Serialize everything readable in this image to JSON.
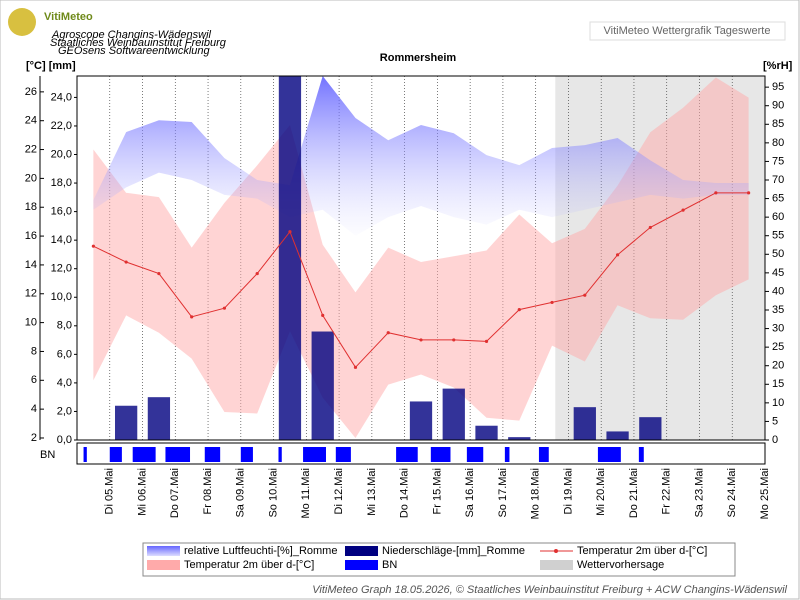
{
  "header": {
    "logo": "VitiMeteo",
    "logo_lines": [
      "Agroscope Changins-Wädenswil",
      "Staatliches Weinbauinstitut Freiburg",
      "GEOsens Softwareentwicklung"
    ],
    "badge": "VitiMeteo Wettergrafik Tageswerte"
  },
  "footer": "VitiMeteo Graph 18.05.2026, © Staatliches Weinbauinstitut Freiburg + ACW Changins-Wädenswil",
  "chart_data": {
    "type": "combo",
    "title": "Rommersheim",
    "y_label": "[°C] [mm]",
    "y2_label": "[%rH]",
    "strip_label": "BN",
    "categories": [
      "Di 05.Mai",
      "Mi 06.Mai",
      "Do 07.Mai",
      "Fr 08.Mai",
      "Sa 09.Mai",
      "So 10.Mai",
      "Mo 11.Mai",
      "Di 12.Mai",
      "Mi 13.Mai",
      "Do 14.Mai",
      "Fr 15.Mai",
      "Sa 16.Mai",
      "So 17.Mai",
      "Mo 18.Mai",
      "Di 19.Mai",
      "Mi 20.Mai",
      "Do 21.Mai",
      "Fr 22.Mai",
      "Sa 23.Mai",
      "So 24.Mai",
      "Mo 25.Mai"
    ],
    "ylim": [
      1.86,
      27.1
    ],
    "yticks": [
      2,
      4,
      6,
      8,
      10,
      12,
      14,
      16,
      18,
      20,
      22,
      24,
      26
    ],
    "y3lim": [
      0,
      25.5
    ],
    "y3ticks": [
      {
        "value": 0,
        "label": "0,0"
      },
      {
        "value": 2,
        "label": "2,0"
      },
      {
        "value": 4,
        "label": "4,0"
      },
      {
        "value": 6,
        "label": "6,0"
      },
      {
        "value": 8,
        "label": "8,0"
      },
      {
        "value": 10,
        "label": "10,0"
      },
      {
        "value": 12,
        "label": "12,0"
      },
      {
        "value": 14,
        "label": "14,0"
      },
      {
        "value": 16,
        "label": "16,0"
      },
      {
        "value": 18,
        "label": "18,0"
      },
      {
        "value": 20,
        "label": "20,0"
      },
      {
        "value": 22,
        "label": "22,0"
      },
      {
        "value": 24,
        "label": "24,0"
      }
    ],
    "y2lim": [
      0,
      98
    ],
    "y2ticks": [
      0,
      5,
      10,
      15,
      20,
      25,
      30,
      35,
      40,
      45,
      50,
      55,
      60,
      65,
      70,
      75,
      80,
      85,
      90,
      95
    ],
    "series": [
      {
        "name": "Temperatur 2m über d-[°C]",
        "type": "band",
        "color": "#ffaaaa",
        "max": [
          22.0,
          19.0,
          18.7,
          15.2,
          18.3,
          20.9,
          23.7,
          15.4,
          12.1,
          15.2,
          14.2,
          14.6,
          15.0,
          17.5,
          15.5,
          16.5,
          19.5,
          23.2,
          24.9,
          27.0,
          25.6
        ],
        "min": [
          6.0,
          10.5,
          9.3,
          7.5,
          3.8,
          3.7,
          9.4,
          4.8,
          2.0,
          5.7,
          6.4,
          5.5,
          3.4,
          3.2,
          8.4,
          7.3,
          11.2,
          10.3,
          10.2,
          11.9,
          13.0
        ]
      },
      {
        "name": "relative Luftfeuchti-[%]_Romme",
        "type": "band",
        "axis": "y2",
        "color": "#6666ff",
        "max": [
          64.6,
          82.9,
          86.1,
          85.6,
          75.9,
          70.0,
          68.6,
          98.0,
          86.7,
          80.7,
          84.8,
          82.6,
          76.7,
          74.0,
          78.6,
          79.4,
          81.3,
          75.3,
          70.0,
          69.2,
          69.2
        ],
        "min": [
          62,
          68,
          72,
          70,
          66,
          65,
          60,
          62,
          55,
          60,
          63,
          60,
          58,
          62,
          60,
          62,
          64,
          66,
          65,
          66,
          66
        ]
      },
      {
        "name": "Niederschläge-[mm]_Romme",
        "type": "bar",
        "axis": "y3",
        "color": "#000080",
        "values": [
          0,
          2.4,
          3.0,
          0,
          0,
          0,
          25.5,
          7.6,
          0,
          0,
          2.7,
          3.6,
          1.0,
          0.2,
          0,
          2.3,
          0.6,
          1.6,
          0,
          0,
          0
        ]
      },
      {
        "name": "Temperatur 2m über d-[°C]",
        "type": "line",
        "color": "#e03030",
        "values": [
          15.3,
          14.2,
          13.4,
          10.4,
          11.0,
          13.4,
          16.3,
          10.5,
          6.9,
          9.3,
          8.8,
          8.8,
          8.7,
          10.9,
          11.4,
          11.9,
          14.7,
          16.6,
          17.8,
          19.0,
          19.0
        ]
      },
      {
        "name": "BN",
        "type": "strip",
        "color": "#0000ff",
        "intervals": [
          [
            0.2,
            0.3
          ],
          [
            1.0,
            1.37
          ],
          [
            1.7,
            2.4
          ],
          [
            2.7,
            3.45
          ],
          [
            3.9,
            4.37
          ],
          [
            5.0,
            5.37
          ],
          [
            6.15,
            6.25
          ],
          [
            6.9,
            7.6
          ],
          [
            7.9,
            8.36
          ],
          [
            9.74,
            10.4
          ],
          [
            10.8,
            11.4
          ],
          [
            11.9,
            12.4
          ],
          [
            13.06,
            13.2
          ],
          [
            14.1,
            14.4
          ],
          [
            15.9,
            16.6
          ],
          [
            17.15,
            17.3
          ]
        ]
      },
      {
        "name": "Wettervorhersage",
        "type": "region",
        "color": "#d0d0d0",
        "from": 14.6
      }
    ]
  }
}
